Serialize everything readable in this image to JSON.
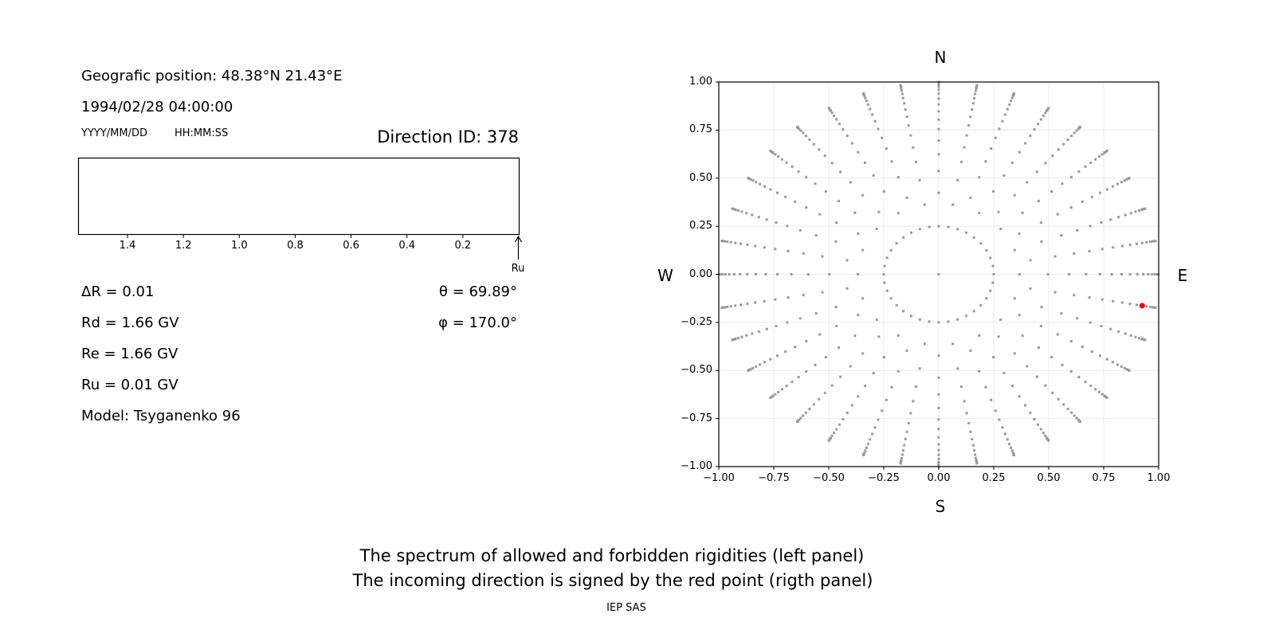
{
  "header": {
    "position": "Geografic position: 48.38°N 21.43°E",
    "datetime": "1994/02/28 04:00:00",
    "date_format": "YYYY/MM/DD",
    "time_format": "HH:MM:SS",
    "direction_id": "Direction ID: 378"
  },
  "params": {
    "delta_r": "ΔR = 0.01",
    "rd": "Rd = 1.66 GV",
    "re": "Re = 1.66 GV",
    "ru": "Ru = 0.01 GV",
    "model": "Model: Tsyganenko 96",
    "theta": "θ = 69.89°",
    "phi": "φ = 170.0°"
  },
  "footer": {
    "line1": "The spectrum of allowed and forbidden rigidities (left panel)",
    "line2": "The incoming direction is signed by the red point (rigth panel)",
    "credit": "IEP SAS"
  },
  "chart_data": [
    {
      "type": "bar",
      "name": "rigidity-spectrum",
      "x_ticks": [
        "1.4",
        "1.2",
        "1.0",
        "0.8",
        "0.6",
        "0.4",
        "0.2"
      ],
      "x_tick_values": [
        1.4,
        1.2,
        1.0,
        0.8,
        0.6,
        0.4,
        0.2
      ],
      "xlim": [
        1.58,
        0
      ],
      "x_reversed": true,
      "values": [],
      "marker_label": "Ru",
      "marker_value": 0.01
    },
    {
      "type": "scatter",
      "name": "direction-map",
      "xlim": [
        -1,
        1
      ],
      "ylim": [
        -1,
        1
      ],
      "x_ticks": [
        "−1.00",
        "−0.75",
        "−0.50",
        "−0.25",
        "0.00",
        "0.25",
        "0.50",
        "0.75",
        "1.00"
      ],
      "y_ticks": [
        "1.00",
        "0.75",
        "0.50",
        "0.25",
        "0.00",
        "−0.25",
        "−0.50",
        "−0.75",
        "−1.00"
      ],
      "tick_values": [
        -1,
        -0.75,
        -0.5,
        -0.25,
        0,
        0.25,
        0.5,
        0.75,
        1
      ],
      "grid": true,
      "compass": {
        "n": "N",
        "s": "S",
        "w": "W",
        "e": "E"
      },
      "grid_azimuth_step_deg": 10,
      "inner_ring_radius": 0.25,
      "grid_color": "#999999",
      "highlight": {
        "theta_deg": 69.89,
        "phi_deg": 170.0,
        "x": 0.925,
        "y": -0.163,
        "color": "#ff0000"
      }
    }
  ]
}
